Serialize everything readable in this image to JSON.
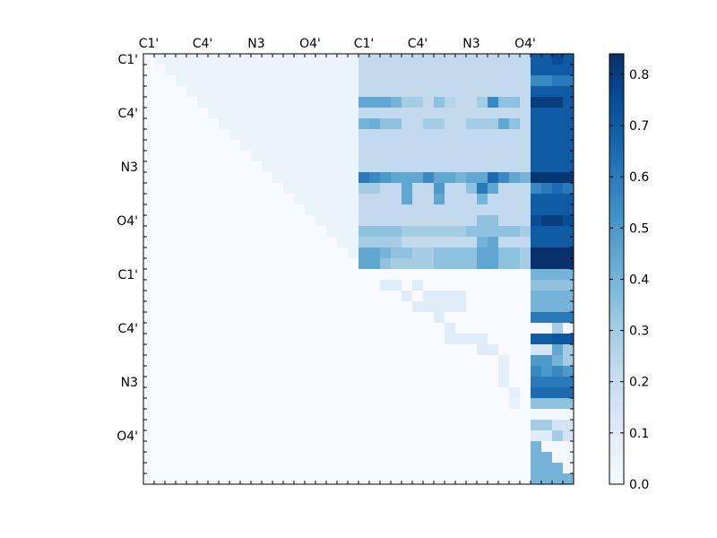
{
  "chart_data": {
    "type": "heatmap",
    "title": "",
    "xlabel": "",
    "ylabel": "",
    "grid": false,
    "grid_size": 40,
    "x_tick_labels": [
      "C1'",
      "C4'",
      "N3",
      "O4'",
      "C1'",
      "C4'",
      "N3",
      "O4'"
    ],
    "x_tick_indices": [
      0,
      5,
      10,
      15,
      20,
      25,
      30,
      35
    ],
    "y_tick_labels": [
      "C1'",
      "C4'",
      "N3",
      "O4'",
      "C1'",
      "C4'",
      "N3",
      "O4'"
    ],
    "y_tick_indices": [
      0,
      5,
      10,
      15,
      20,
      25,
      30,
      35
    ],
    "colorbar": {
      "ticks": [
        0.0,
        0.1,
        0.2,
        0.3,
        0.4,
        0.5,
        0.6,
        0.7,
        0.8
      ],
      "tick_labels": [
        "0.0",
        "0.1",
        "0.2",
        "0.3",
        "0.4",
        "0.5",
        "0.6",
        "0.7",
        "0.8"
      ],
      "vmin": 0.0,
      "vmax": 0.84,
      "colormap": "Blues"
    },
    "regions": [
      {
        "rows": [
          0,
          19
        ],
        "cols": [
          20,
          35
        ],
        "value": 0.22
      },
      {
        "rows": [
          0,
          19
        ],
        "cols": [
          36,
          39
        ],
        "value": 0.7
      },
      {
        "rows": [
          20,
          39
        ],
        "cols": [
          36,
          39
        ],
        "value": 0.4
      },
      {
        "rows": [
          0,
          19
        ],
        "cols": [
          0,
          19
        ],
        "upper_triangle": true,
        "value": 0.05
      }
    ],
    "cells": [
      [
        4,
        20,
        0.45
      ],
      [
        4,
        21,
        0.45
      ],
      [
        4,
        22,
        0.45
      ],
      [
        4,
        23,
        0.4
      ],
      [
        4,
        24,
        0.3
      ],
      [
        4,
        25,
        0.3
      ],
      [
        4,
        27,
        0.35
      ],
      [
        4,
        28,
        0.25
      ],
      [
        4,
        31,
        0.3
      ],
      [
        4,
        32,
        0.55
      ],
      [
        4,
        33,
        0.35
      ],
      [
        4,
        34,
        0.35
      ],
      [
        6,
        20,
        0.4
      ],
      [
        6,
        21,
        0.42
      ],
      [
        6,
        22,
        0.35
      ],
      [
        6,
        23,
        0.35
      ],
      [
        6,
        26,
        0.3
      ],
      [
        6,
        27,
        0.3
      ],
      [
        6,
        30,
        0.3
      ],
      [
        6,
        31,
        0.3
      ],
      [
        6,
        32,
        0.3
      ],
      [
        6,
        33,
        0.45
      ],
      [
        6,
        34,
        0.35
      ],
      [
        11,
        20,
        0.6
      ],
      [
        11,
        21,
        0.55
      ],
      [
        11,
        22,
        0.5
      ],
      [
        11,
        23,
        0.45
      ],
      [
        11,
        24,
        0.45
      ],
      [
        11,
        25,
        0.45
      ],
      [
        11,
        26,
        0.55
      ],
      [
        11,
        27,
        0.45
      ],
      [
        11,
        28,
        0.45
      ],
      [
        11,
        29,
        0.4
      ],
      [
        11,
        30,
        0.45
      ],
      [
        11,
        31,
        0.45
      ],
      [
        11,
        32,
        0.65
      ],
      [
        11,
        33,
        0.55
      ],
      [
        11,
        34,
        0.45
      ],
      [
        11,
        35,
        0.4
      ],
      [
        12,
        20,
        0.3
      ],
      [
        12,
        21,
        0.3
      ],
      [
        12,
        24,
        0.45
      ],
      [
        12,
        27,
        0.5
      ],
      [
        12,
        30,
        0.35
      ],
      [
        12,
        31,
        0.6
      ],
      [
        12,
        32,
        0.45
      ],
      [
        13,
        24,
        0.45
      ],
      [
        13,
        27,
        0.45
      ],
      [
        13,
        31,
        0.4
      ],
      [
        15,
        31,
        0.35
      ],
      [
        15,
        32,
        0.35
      ],
      [
        16,
        20,
        0.35
      ],
      [
        16,
        21,
        0.35
      ],
      [
        16,
        22,
        0.35
      ],
      [
        16,
        23,
        0.35
      ],
      [
        16,
        24,
        0.3
      ],
      [
        16,
        25,
        0.3
      ],
      [
        16,
        26,
        0.3
      ],
      [
        16,
        27,
        0.3
      ],
      [
        16,
        28,
        0.3
      ],
      [
        16,
        29,
        0.3
      ],
      [
        16,
        30,
        0.35
      ],
      [
        16,
        31,
        0.35
      ],
      [
        16,
        32,
        0.35
      ],
      [
        16,
        33,
        0.35
      ],
      [
        16,
        34,
        0.35
      ],
      [
        16,
        35,
        0.3
      ],
      [
        17,
        20,
        0.3
      ],
      [
        17,
        21,
        0.3
      ],
      [
        17,
        22,
        0.3
      ],
      [
        17,
        23,
        0.3
      ],
      [
        17,
        31,
        0.4
      ],
      [
        17,
        32,
        0.45
      ],
      [
        18,
        20,
        0.45
      ],
      [
        18,
        21,
        0.45
      ],
      [
        18,
        22,
        0.4
      ],
      [
        18,
        23,
        0.35
      ],
      [
        18,
        24,
        0.35
      ],
      [
        18,
        25,
        0.3
      ],
      [
        18,
        26,
        0.3
      ],
      [
        18,
        27,
        0.35
      ],
      [
        18,
        28,
        0.35
      ],
      [
        18,
        29,
        0.35
      ],
      [
        18,
        30,
        0.35
      ],
      [
        18,
        31,
        0.45
      ],
      [
        18,
        32,
        0.45
      ],
      [
        18,
        33,
        0.35
      ],
      [
        18,
        34,
        0.35
      ],
      [
        18,
        35,
        0.3
      ],
      [
        19,
        20,
        0.45
      ],
      [
        19,
        21,
        0.45
      ],
      [
        19,
        22,
        0.35
      ],
      [
        19,
        23,
        0.3
      ],
      [
        19,
        24,
        0.3
      ],
      [
        19,
        25,
        0.3
      ],
      [
        19,
        26,
        0.3
      ],
      [
        19,
        27,
        0.35
      ],
      [
        19,
        28,
        0.35
      ],
      [
        19,
        29,
        0.35
      ],
      [
        19,
        30,
        0.35
      ],
      [
        19,
        31,
        0.45
      ],
      [
        19,
        32,
        0.45
      ],
      [
        19,
        33,
        0.35
      ],
      [
        19,
        34,
        0.35
      ],
      [
        19,
        35,
        0.3
      ],
      [
        0,
        36,
        0.7
      ],
      [
        0,
        37,
        0.7
      ],
      [
        0,
        38,
        0.75
      ],
      [
        0,
        39,
        0.7
      ],
      [
        2,
        36,
        0.55
      ],
      [
        2,
        37,
        0.55
      ],
      [
        2,
        38,
        0.6
      ],
      [
        2,
        39,
        0.6
      ],
      [
        4,
        36,
        0.8
      ],
      [
        4,
        37,
        0.8
      ],
      [
        4,
        38,
        0.8
      ],
      [
        4,
        39,
        0.7
      ],
      [
        11,
        36,
        0.82
      ],
      [
        11,
        37,
        0.82
      ],
      [
        11,
        38,
        0.82
      ],
      [
        11,
        39,
        0.82
      ],
      [
        12,
        36,
        0.55
      ],
      [
        12,
        37,
        0.6
      ],
      [
        12,
        38,
        0.65
      ],
      [
        12,
        39,
        0.6
      ],
      [
        15,
        36,
        0.75
      ],
      [
        15,
        37,
        0.8
      ],
      [
        15,
        38,
        0.8
      ],
      [
        15,
        39,
        0.75
      ],
      [
        18,
        36,
        0.84
      ],
      [
        18,
        37,
        0.84
      ],
      [
        18,
        38,
        0.84
      ],
      [
        18,
        39,
        0.84
      ],
      [
        19,
        36,
        0.84
      ],
      [
        19,
        37,
        0.84
      ],
      [
        19,
        38,
        0.84
      ],
      [
        19,
        39,
        0.84
      ],
      [
        21,
        36,
        0.35
      ],
      [
        21,
        37,
        0.35
      ],
      [
        21,
        38,
        0.35
      ],
      [
        21,
        39,
        0.35
      ],
      [
        24,
        36,
        0.6
      ],
      [
        24,
        37,
        0.6
      ],
      [
        24,
        38,
        0.6
      ],
      [
        24,
        39,
        0.6
      ],
      [
        25,
        36,
        0.02
      ],
      [
        25,
        37,
        0.02
      ],
      [
        25,
        38,
        0.3
      ],
      [
        25,
        39,
        0.02
      ],
      [
        26,
        36,
        0.7
      ],
      [
        26,
        37,
        0.7
      ],
      [
        26,
        38,
        0.72
      ],
      [
        26,
        39,
        0.72
      ],
      [
        27,
        36,
        0.15
      ],
      [
        27,
        37,
        0.15
      ],
      [
        27,
        38,
        0.45
      ],
      [
        27,
        39,
        0.3
      ],
      [
        28,
        36,
        0.5
      ],
      [
        28,
        37,
        0.5
      ],
      [
        28,
        38,
        0.4
      ],
      [
        28,
        39,
        0.3
      ],
      [
        29,
        36,
        0.55
      ],
      [
        29,
        37,
        0.5
      ],
      [
        29,
        38,
        0.55
      ],
      [
        29,
        39,
        0.5
      ],
      [
        30,
        36,
        0.6
      ],
      [
        30,
        37,
        0.6
      ],
      [
        30,
        38,
        0.6
      ],
      [
        30,
        39,
        0.6
      ],
      [
        31,
        36,
        0.65
      ],
      [
        31,
        37,
        0.65
      ],
      [
        31,
        38,
        0.65
      ],
      [
        31,
        39,
        0.65
      ],
      [
        32,
        36,
        0.35
      ],
      [
        32,
        37,
        0.35
      ],
      [
        32,
        38,
        0.35
      ],
      [
        32,
        39,
        0.35
      ],
      [
        33,
        36,
        0.02
      ],
      [
        33,
        37,
        0.02
      ],
      [
        33,
        38,
        0.02
      ],
      [
        33,
        39,
        0.02
      ],
      [
        34,
        36,
        0.3
      ],
      [
        34,
        37,
        0.3
      ],
      [
        34,
        38,
        0.15
      ],
      [
        34,
        39,
        0.15
      ],
      [
        35,
        36,
        0.1
      ],
      [
        35,
        37,
        0.1
      ],
      [
        35,
        38,
        0.3
      ],
      [
        35,
        39,
        0.15
      ],
      [
        36,
        37,
        0.02
      ],
      [
        36,
        38,
        0.02
      ],
      [
        36,
        39,
        0.02
      ],
      [
        37,
        38,
        0.02
      ],
      [
        37,
        39,
        0.02
      ],
      [
        38,
        39,
        0.02
      ],
      [
        21,
        22,
        0.1
      ],
      [
        21,
        23,
        0.1
      ],
      [
        21,
        25,
        0.1
      ],
      [
        22,
        24,
        0.1
      ],
      [
        22,
        26,
        0.1
      ],
      [
        22,
        27,
        0.1
      ],
      [
        22,
        28,
        0.1
      ],
      [
        22,
        29,
        0.1
      ],
      [
        23,
        25,
        0.1
      ],
      [
        23,
        26,
        0.1
      ],
      [
        23,
        27,
        0.1
      ],
      [
        23,
        28,
        0.1
      ],
      [
        23,
        29,
        0.1
      ],
      [
        24,
        27,
        0.1
      ],
      [
        25,
        28,
        0.1
      ],
      [
        26,
        28,
        0.1
      ],
      [
        26,
        29,
        0.1
      ],
      [
        26,
        30,
        0.1
      ],
      [
        26,
        31,
        0.1
      ],
      [
        27,
        31,
        0.1
      ],
      [
        27,
        32,
        0.1
      ],
      [
        28,
        33,
        0.08
      ],
      [
        29,
        33,
        0.08
      ],
      [
        30,
        33,
        0.08
      ],
      [
        31,
        34,
        0.08
      ],
      [
        32,
        34,
        0.06
      ]
    ]
  }
}
